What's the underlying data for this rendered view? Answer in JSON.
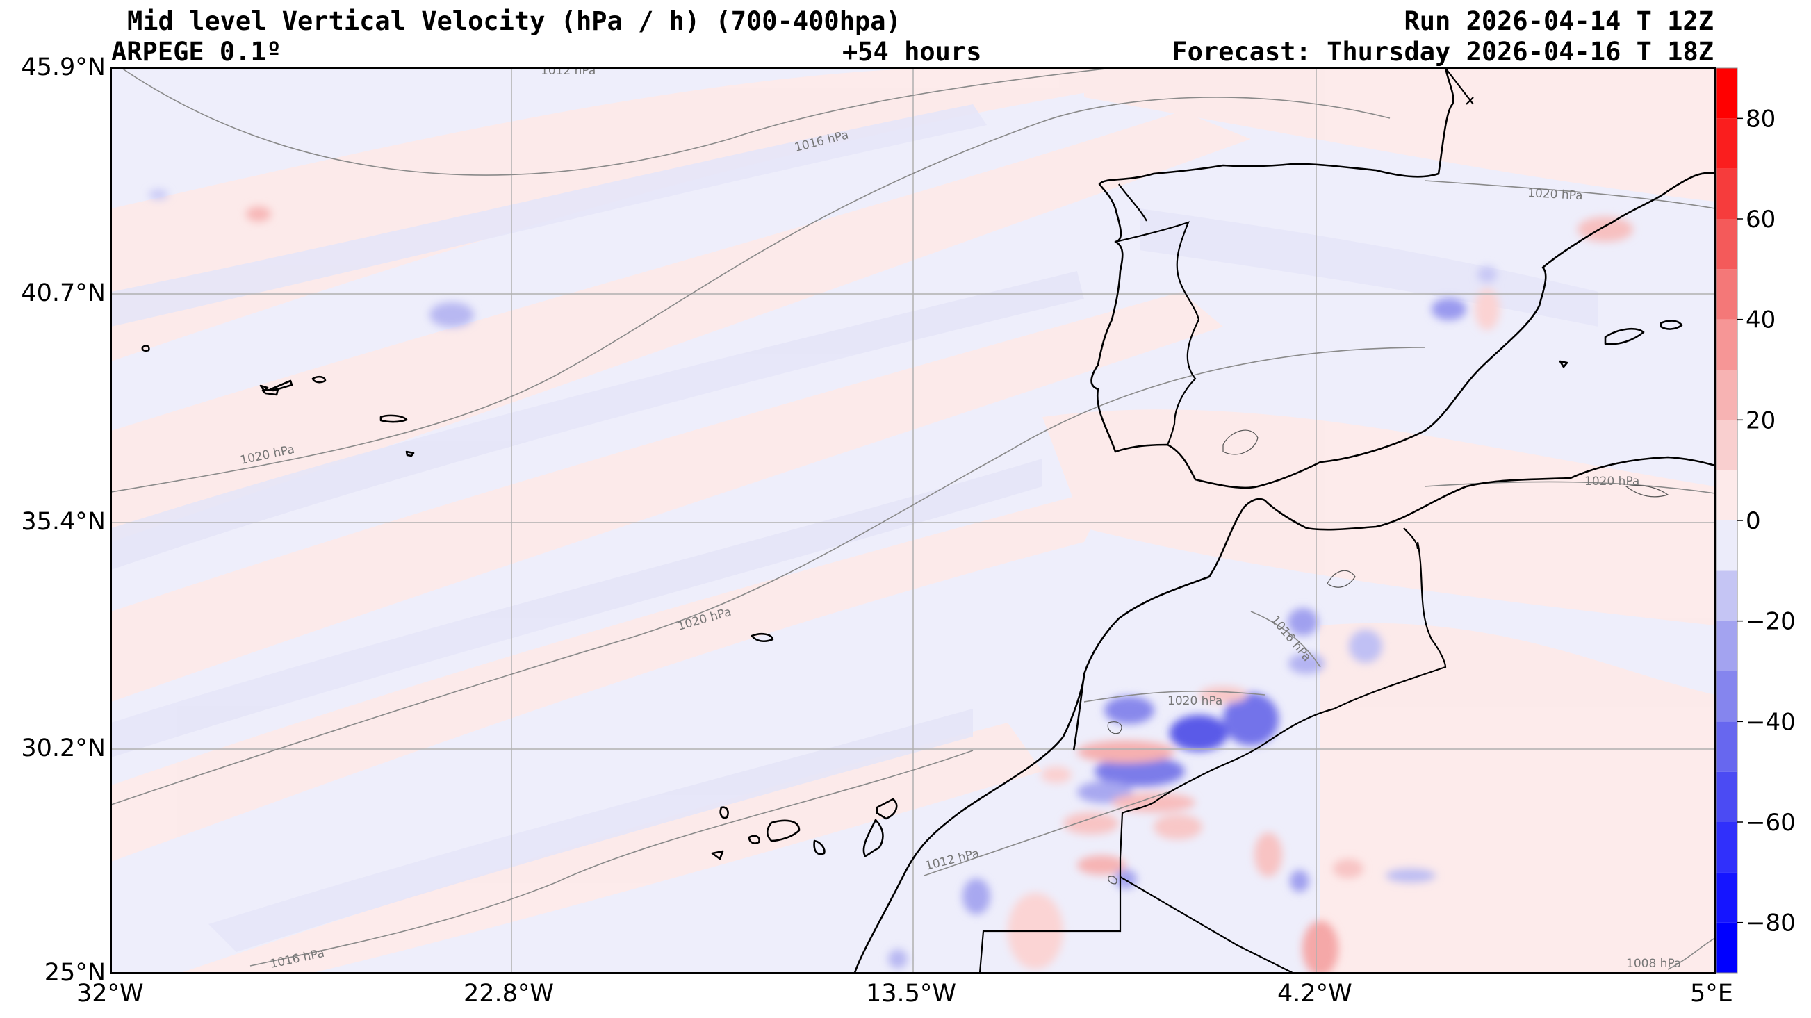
{
  "header": {
    "title": "Mid level Vertical Velocity (hPa / h)  (700-400hpa)",
    "model": "ARPEGE 0.1º",
    "lead": "+54 hours",
    "run": "Run 2026-04-14 T 12Z",
    "forecast": "Forecast: Thursday 2026-04-16 T 18Z"
  },
  "map": {
    "lat_labels": [
      "45.9°N",
      "40.7°N",
      "35.4°N",
      "30.2°N",
      "25°N"
    ],
    "lon_labels": [
      "32°W",
      "22.8°W",
      "13.5°W",
      "4.2°W",
      "5°E"
    ],
    "isobar_labels": [
      "1012 hPa",
      "1016 hPa",
      "1020 hPa",
      "1020 hPa",
      "1020 hPa",
      "1020 hPa",
      "1016 hPa",
      "1020 hPa",
      "1012 hPa",
      "1016 hPa",
      "1008 hPa"
    ],
    "colors": {
      "positive": "#ff0000",
      "negative": "#0000ff",
      "weak_positive": "#fdeaea",
      "weak_negative": "#ececfa",
      "coast": "#000000",
      "isobar": "#8a8a8a",
      "grid": "#b0b0b0"
    }
  },
  "colorbar": {
    "ticks": [
      "80",
      "60",
      "40",
      "20",
      "0",
      "−20",
      "−40",
      "−60",
      "−80"
    ],
    "range": [
      -90,
      90
    ]
  }
}
